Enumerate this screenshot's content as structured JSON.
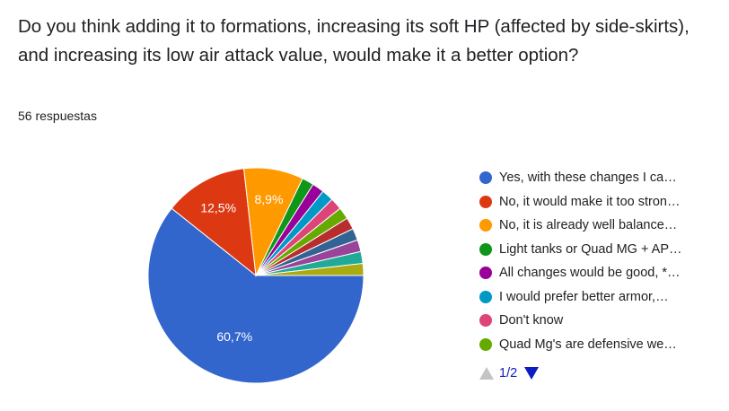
{
  "question": "Do you think adding it to formations, increasing its soft HP (affected by side-skirts), and increasing its low air attack value, would make it a better option?",
  "responses": "56 respuestas",
  "pager": {
    "page": "1/2",
    "up_icon": "triangle-up-icon",
    "down_icon": "triangle-down-icon"
  },
  "legend": [
    {
      "label": "Yes, with these changes I ca…",
      "color": "#3366cc"
    },
    {
      "label": "No, it would make it too stron…",
      "color": "#dc3912"
    },
    {
      "label": "No, it is already well balance…",
      "color": "#ff9900"
    },
    {
      "label": "Light tanks or Quad MG + AP…",
      "color": "#109618"
    },
    {
      "label": "All changes would be good, *…",
      "color": "#990099"
    },
    {
      "label": "I would prefer better armor,…",
      "color": "#0099c6"
    },
    {
      "label": "Don't know",
      "color": "#dd4477"
    },
    {
      "label": "Quad Mg's are defensive we…",
      "color": "#66aa00"
    }
  ],
  "chart_data": {
    "type": "pie",
    "title": "Do you think adding it to formations, increasing its soft HP (affected by side-skirts), and increasing its low air attack value, would make it a better option?",
    "total": 56,
    "slices": [
      {
        "label": "Yes, with these changes I ca…",
        "value": 34,
        "pct_label": "60,7%",
        "color": "#3366cc"
      },
      {
        "label": "No, it would make it too stron…",
        "value": 7,
        "pct_label": "12,5%",
        "color": "#dc3912"
      },
      {
        "label": "No, it is already well balance…",
        "value": 5,
        "pct_label": "8,9%",
        "color": "#ff9900"
      },
      {
        "label": "Light tanks or Quad MG + AP…",
        "value": 1,
        "pct_label": "",
        "color": "#109618"
      },
      {
        "label": "All changes would be good, *…",
        "value": 1,
        "pct_label": "",
        "color": "#990099"
      },
      {
        "label": "I would prefer better armor,…",
        "value": 1,
        "pct_label": "",
        "color": "#0099c6"
      },
      {
        "label": "Don't know",
        "value": 1,
        "pct_label": "",
        "color": "#dd4477"
      },
      {
        "label": "Quad Mg's are defensive we…",
        "value": 1,
        "pct_label": "",
        "color": "#66aa00"
      },
      {
        "label": "",
        "value": 1,
        "pct_label": "",
        "color": "#b82e2e"
      },
      {
        "label": "",
        "value": 1,
        "pct_label": "",
        "color": "#316395"
      },
      {
        "label": "",
        "value": 1,
        "pct_label": "",
        "color": "#994499"
      },
      {
        "label": "",
        "value": 1,
        "pct_label": "",
        "color": "#22aa99"
      },
      {
        "label": "",
        "value": 1,
        "pct_label": "",
        "color": "#aaaa11"
      }
    ],
    "legend_position": "right"
  }
}
